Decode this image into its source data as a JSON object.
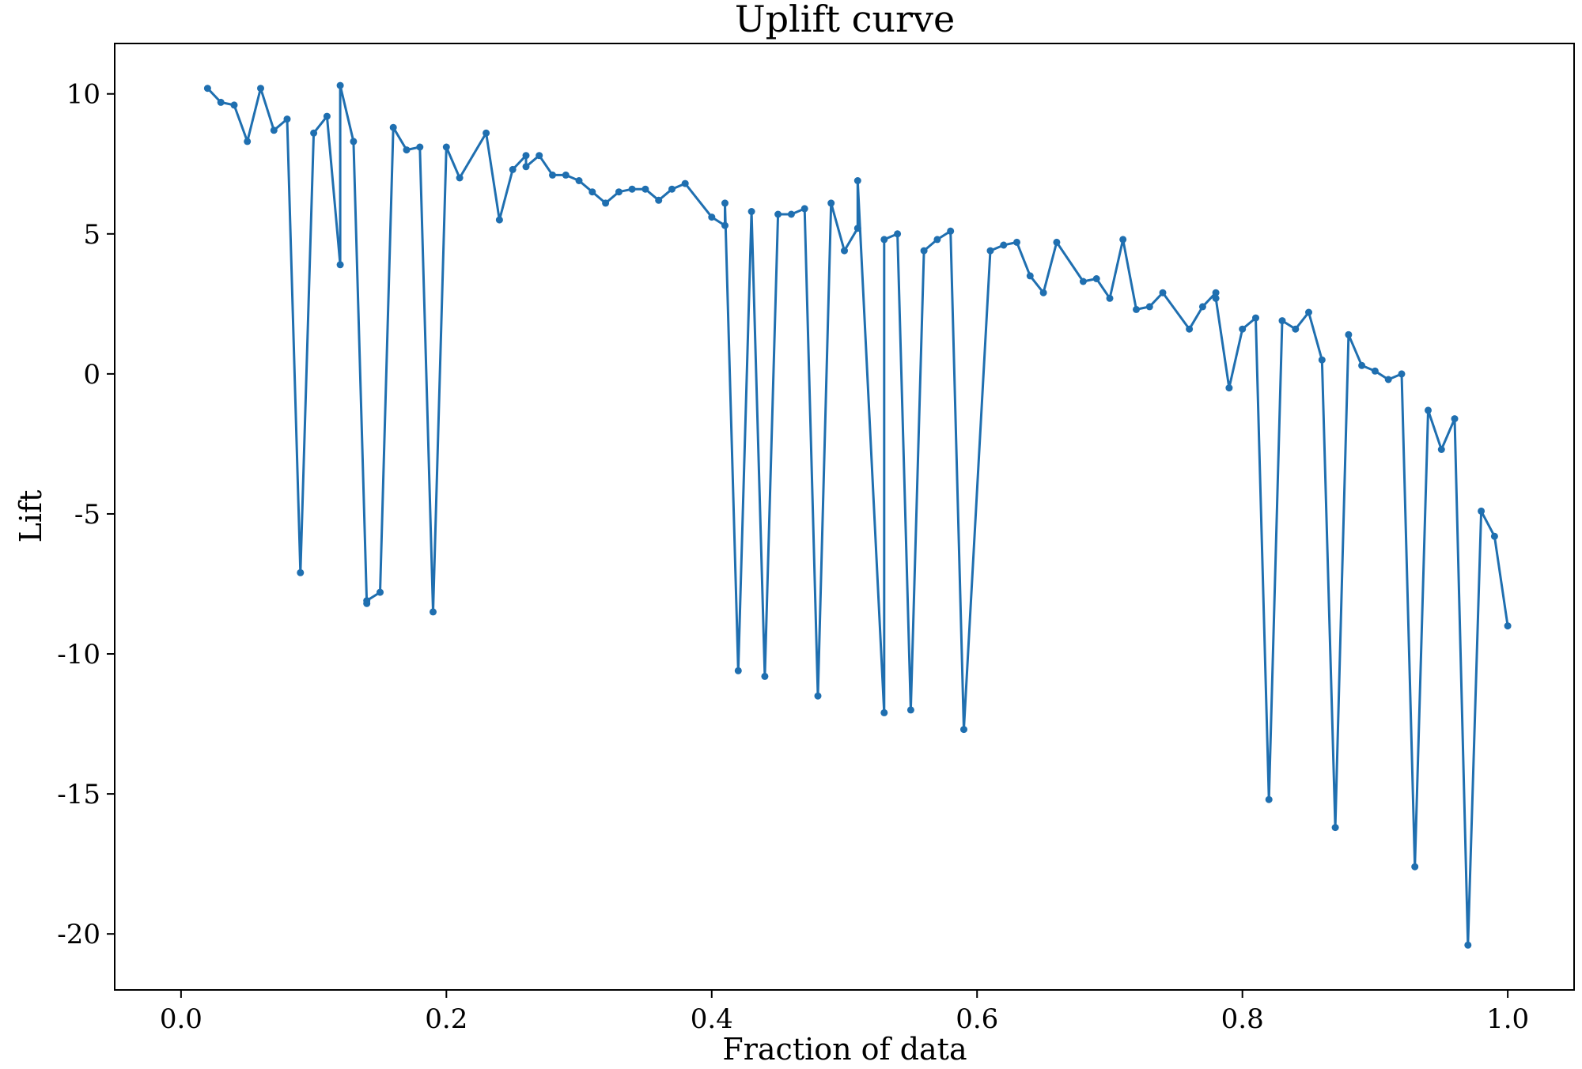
{
  "chart_data": {
    "type": "line",
    "title": "Uplift curve",
    "xlabel": "Fraction of data",
    "ylabel": "Lift",
    "xlim": [
      -0.05,
      1.05
    ],
    "ylim": [
      -22,
      11.8
    ],
    "xticks": [
      0.0,
      0.2,
      0.4,
      0.6,
      0.8,
      1.0
    ],
    "xtick_labels": [
      "0.0",
      "0.2",
      "0.4",
      "0.6",
      "0.8",
      "1.0"
    ],
    "yticks": [
      10,
      5,
      0,
      -5,
      -10,
      -15,
      -20
    ],
    "ytick_labels": [
      "10",
      "5",
      "0",
      "-5",
      "-10",
      "-15",
      "-20"
    ],
    "grid": false,
    "line_color": "#1f6fb0",
    "series": [
      {
        "marker": "o",
        "x": [
          0.02,
          0.03,
          0.04,
          0.05,
          0.06,
          0.07,
          0.08,
          0.09,
          0.1,
          0.11,
          0.12,
          0.12,
          0.13,
          0.14,
          0.14,
          0.15,
          0.16,
          0.17,
          0.18,
          0.19,
          0.2,
          0.21,
          0.23,
          0.24,
          0.25,
          0.26,
          0.26,
          0.27,
          0.28,
          0.29,
          0.3,
          0.31,
          0.32,
          0.33,
          0.34,
          0.35,
          0.36,
          0.37,
          0.38,
          0.4,
          0.41,
          0.41,
          0.42,
          0.43,
          0.44,
          0.45,
          0.46,
          0.47,
          0.48,
          0.49,
          0.5,
          0.51,
          0.51,
          0.53,
          0.53,
          0.54,
          0.55,
          0.56,
          0.57,
          0.58,
          0.59,
          0.61,
          0.62,
          0.63,
          0.64,
          0.65,
          0.66,
          0.68,
          0.69,
          0.7,
          0.71,
          0.72,
          0.73,
          0.74,
          0.76,
          0.77,
          0.78,
          0.78,
          0.79,
          0.8,
          0.81,
          0.82,
          0.83,
          0.84,
          0.85,
          0.86,
          0.87,
          0.88,
          0.89,
          0.9,
          0.91,
          0.92,
          0.93,
          0.94,
          0.95,
          0.96,
          0.97,
          0.98,
          0.99,
          1.0
        ],
        "y": [
          10.2,
          9.7,
          9.6,
          8.3,
          10.2,
          8.7,
          9.1,
          -7.1,
          8.6,
          9.2,
          3.9,
          10.3,
          8.3,
          -8.2,
          -8.1,
          -7.8,
          8.8,
          8.0,
          8.1,
          -8.5,
          8.1,
          7.0,
          8.6,
          5.5,
          7.3,
          7.8,
          7.4,
          7.8,
          7.1,
          7.1,
          6.9,
          6.5,
          6.1,
          6.5,
          6.6,
          6.6,
          6.2,
          6.6,
          6.8,
          5.6,
          5.3,
          6.1,
          -10.6,
          5.8,
          -10.8,
          5.7,
          5.7,
          5.9,
          -11.5,
          6.1,
          4.4,
          5.2,
          6.9,
          -12.1,
          4.8,
          5.0,
          -12.0,
          4.4,
          4.8,
          5.1,
          -12.7,
          4.4,
          4.6,
          4.7,
          3.5,
          2.9,
          4.7,
          3.3,
          3.4,
          2.7,
          4.8,
          2.3,
          2.4,
          2.9,
          1.6,
          2.4,
          2.9,
          2.7,
          -0.5,
          1.6,
          2.0,
          -15.2,
          1.9,
          1.6,
          2.2,
          0.5,
          -16.2,
          1.4,
          0.3,
          0.1,
          -0.2,
          0.0,
          -17.6,
          -1.3,
          -2.7,
          -1.6,
          -20.4,
          -4.9,
          -5.8,
          -9.0
        ]
      }
    ]
  }
}
